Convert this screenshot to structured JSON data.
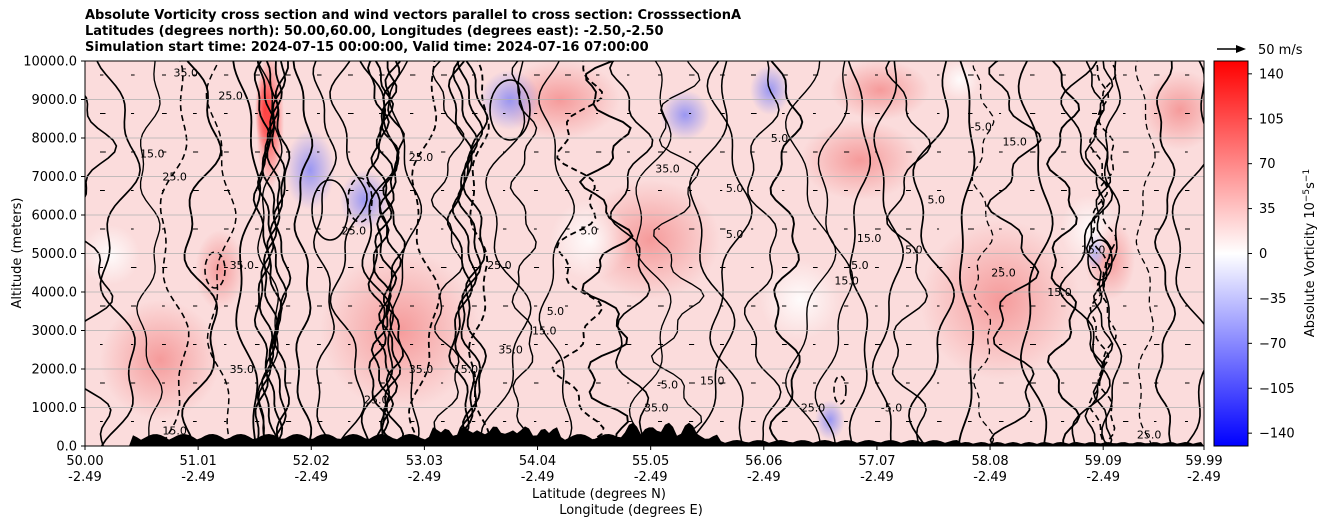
{
  "chart_data": {
    "type": "heatmap",
    "title": [
      "Absolute Vorticity cross section and wind vectors parallel to cross section: CrosssectionA",
      "Latitudes (degrees north): 50.00,60.00, Longitudes (degrees east): -2.50,-2.50",
      "Simulation start time: 2024-07-15 00:00:00, Valid time: 2024-07-16 07:00:00"
    ],
    "xlabel": [
      "Latitude (degrees N)",
      "Longitude (degrees E)"
    ],
    "ylabel": "Altitude (meters)",
    "x_ticks": [
      {
        "lat": "50.00",
        "lon": "-2.49"
      },
      {
        "lat": "51.01",
        "lon": "-2.49"
      },
      {
        "lat": "52.02",
        "lon": "-2.49"
      },
      {
        "lat": "53.03",
        "lon": "-2.49"
      },
      {
        "lat": "54.04",
        "lon": "-2.49"
      },
      {
        "lat": "55.05",
        "lon": "-2.49"
      },
      {
        "lat": "56.06",
        "lon": "-2.49"
      },
      {
        "lat": "57.07",
        "lon": "-2.49"
      },
      {
        "lat": "58.08",
        "lon": "-2.49"
      },
      {
        "lat": "59.09",
        "lon": "-2.49"
      },
      {
        "lat": "59.99",
        "lon": "-2.49"
      }
    ],
    "xlim": [
      50.0,
      59.99
    ],
    "y_ticks": [
      "0.0",
      "1000.0",
      "2000.0",
      "3000.0",
      "4000.0",
      "5000.0",
      "6000.0",
      "7000.0",
      "8000.0",
      "9000.0",
      "10000.0"
    ],
    "ylim": [
      0,
      10000
    ],
    "grid": "horizontal",
    "colorbar": {
      "label": "Absolute Vorticity 10",
      "label_exp": "−5",
      "label_unit": "s",
      "label_unit_exp": "−1",
      "ticks": [
        "140",
        "105",
        "70",
        "35",
        "0",
        "−35",
        "−70",
        "−105",
        "−140"
      ],
      "range": [
        -150,
        150
      ],
      "colormap": "bwr",
      "colors": {
        "low": "#0000ff",
        "mid": "#ffffff",
        "high": "#ff0000"
      }
    },
    "quiver_key": {
      "label": "50 m/s"
    },
    "contour_labels": [
      {
        "text": "35.0",
        "x": 50.9,
        "y": 9600
      },
      {
        "text": "25.0",
        "x": 51.3,
        "y": 9000
      },
      {
        "text": "15.0",
        "x": 50.6,
        "y": 7500
      },
      {
        "text": "25.0",
        "x": 50.8,
        "y": 6900
      },
      {
        "text": "25.0",
        "x": 53.0,
        "y": 7400
      },
      {
        "text": "35.0",
        "x": 55.2,
        "y": 7100
      },
      {
        "text": "5.0",
        "x": 56.2,
        "y": 7900
      },
      {
        "text": "-5.0",
        "x": 58.0,
        "y": 8200
      },
      {
        "text": "15.0",
        "x": 58.3,
        "y": 7800
      },
      {
        "text": "5.0",
        "x": 57.6,
        "y": 6300
      },
      {
        "text": "5.0",
        "x": 55.8,
        "y": 6600
      },
      {
        "text": "25.0",
        "x": 52.4,
        "y": 5500
      },
      {
        "text": "5.0",
        "x": 54.5,
        "y": 5500
      },
      {
        "text": "5.0",
        "x": 55.8,
        "y": 5400
      },
      {
        "text": "15.0",
        "x": 57.0,
        "y": 5300
      },
      {
        "text": "5.0",
        "x": 57.4,
        "y": 5000
      },
      {
        "text": "-5.0",
        "x": 56.9,
        "y": 4600
      },
      {
        "text": "15.0",
        "x": 56.8,
        "y": 4200
      },
      {
        "text": "25.0",
        "x": 53.7,
        "y": 4600
      },
      {
        "text": "35.0",
        "x": 51.4,
        "y": 4600
      },
      {
        "text": "25.0",
        "x": 58.2,
        "y": 4400
      },
      {
        "text": "15.0",
        "x": 59.0,
        "y": 5000
      },
      {
        "text": "15.0",
        "x": 58.7,
        "y": 3900
      },
      {
        "text": "5.0",
        "x": 54.2,
        "y": 3400
      },
      {
        "text": "15.0",
        "x": 54.1,
        "y": 2900
      },
      {
        "text": "35.0",
        "x": 53.8,
        "y": 2400
      },
      {
        "text": "35.0",
        "x": 51.4,
        "y": 1900
      },
      {
        "text": "35.0",
        "x": 53.0,
        "y": 1900
      },
      {
        "text": "15.0",
        "x": 53.4,
        "y": 1900
      },
      {
        "text": "25.0",
        "x": 52.6,
        "y": 1100
      },
      {
        "text": "-5.0",
        "x": 55.2,
        "y": 1500
      },
      {
        "text": "15.0",
        "x": 55.6,
        "y": 1600
      },
      {
        "text": "25.0",
        "x": 56.5,
        "y": 900
      },
      {
        "text": "-5.0",
        "x": 57.2,
        "y": 900
      },
      {
        "text": "25.0",
        "x": 59.5,
        "y": 200
      },
      {
        "text": "15.0",
        "x": 50.8,
        "y": 300
      },
      {
        "text": "35.0",
        "x": 55.1,
        "y": 900
      }
    ]
  }
}
